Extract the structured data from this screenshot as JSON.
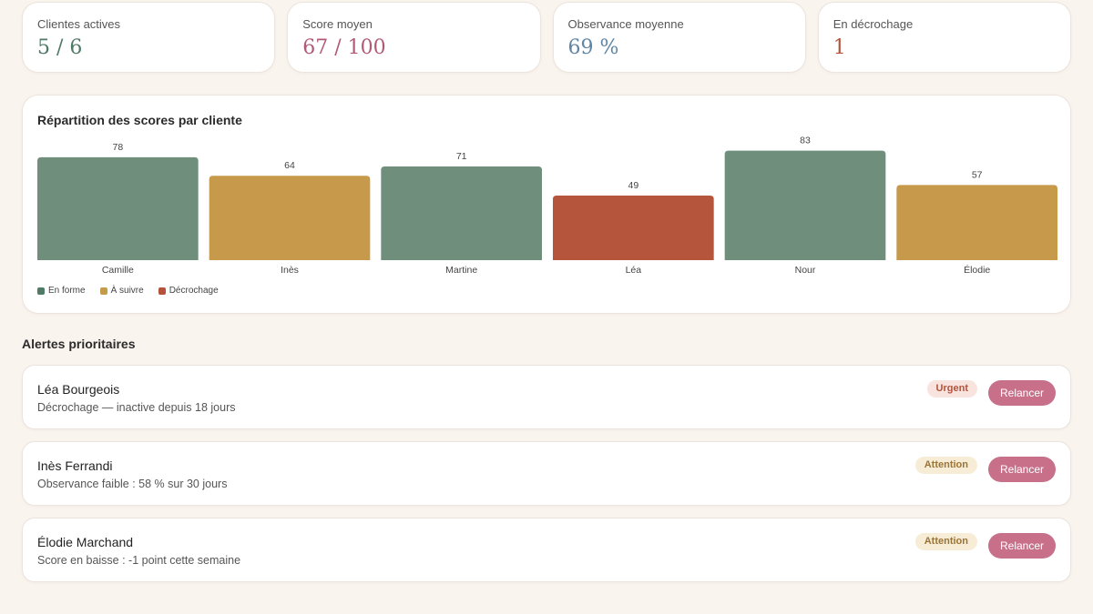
{
  "stats": [
    {
      "label": "Clientes actives",
      "value": "5 / 6",
      "color": "#4f7a66"
    },
    {
      "label": "Score moyen",
      "value": "67 / 100",
      "color": "#b05a76"
    },
    {
      "label": "Observance moyenne",
      "value": "69 %",
      "color": "#5f86a6"
    },
    {
      "label": "En décrochage",
      "value": "1",
      "color": "#b4533a"
    }
  ],
  "chart": {
    "title": "Répartition des scores par cliente",
    "legend": [
      {
        "label": "En forme",
        "color": "#4f7a66"
      },
      {
        "label": "À suivre",
        "color": "#c59a4a"
      },
      {
        "label": "Décrochage",
        "color": "#b4533a"
      }
    ]
  },
  "chart_data": {
    "type": "bar",
    "categories": [
      "Camille",
      "Inès",
      "Martine",
      "Léa",
      "Nour",
      "Élodie"
    ],
    "values": [
      78,
      64,
      71,
      49,
      83,
      57
    ],
    "status": [
      "En forme",
      "À suivre",
      "En forme",
      "Décrochage",
      "En forme",
      "À suivre"
    ],
    "colors": {
      "En forme": "#6f8f7c",
      "À suivre": "#c6994b",
      "Décrochage": "#b5563c"
    },
    "ylim": [
      0,
      100
    ],
    "legend_position": "bottom-left",
    "grid": false
  },
  "alerts_title": "Alertes prioritaires",
  "alerts": [
    {
      "name": "Léa Bourgeois",
      "desc": "Décrochage — inactive depuis 18 jours",
      "badge": "Urgent",
      "action": "Relancer"
    },
    {
      "name": "Inès Ferrandi",
      "desc": "Observance faible : 58 % sur 30 jours",
      "badge": "Attention",
      "action": "Relancer"
    },
    {
      "name": "Élodie Marchand",
      "desc": "Score en baisse : -1 point cette semaine",
      "badge": "Attention",
      "action": "Relancer"
    }
  ]
}
